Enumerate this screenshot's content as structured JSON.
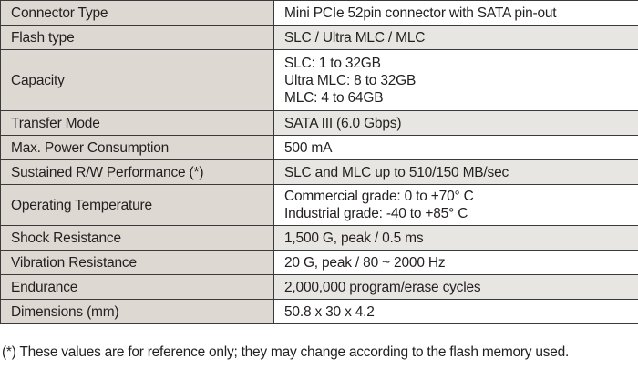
{
  "table": {
    "rows": [
      {
        "label": "Connector Type",
        "values": [
          "Mini PCIe 52pin connector with SATA pin-out"
        ]
      },
      {
        "label": "Flash type",
        "values": [
          "SLC / Ultra MLC / MLC"
        ]
      },
      {
        "label": "Capacity",
        "values": [
          "SLC: 1 to 32GB",
          "Ultra MLC: 8 to 32GB",
          "MLC: 4 to 64GB"
        ]
      },
      {
        "label": "Transfer Mode",
        "values": [
          "SATA III (6.0 Gbps)"
        ]
      },
      {
        "label": "Max. Power Consumption",
        "values": [
          "500 mA"
        ]
      },
      {
        "label": "Sustained R/W Performance (*)",
        "values": [
          "SLC and MLC up to 510/150 MB/sec"
        ]
      },
      {
        "label": "Operating Temperature",
        "values": [
          "Commercial grade: 0 to +70° C",
          "Industrial grade: -40 to +85° C"
        ]
      },
      {
        "label": "Shock Resistance",
        "values": [
          "1,500 G, peak / 0.5 ms"
        ]
      },
      {
        "label": "Vibration Resistance",
        "values": [
          "20 G, peak / 80 ~ 2000 Hz"
        ]
      },
      {
        "label": "Endurance",
        "values": [
          "2,000,000 program/erase cycles"
        ]
      },
      {
        "label": "Dimensions (mm)",
        "values": [
          "50.8 x 30 x 4.2"
        ]
      }
    ]
  },
  "footnote": "(*) These values are for reference only; they may change according to the flash memory used.",
  "colors": {
    "label_background": "#ddd9d2",
    "shaded_value_background": "#e8e6e2",
    "border": "#3a3a3a",
    "text": "#231f20"
  }
}
